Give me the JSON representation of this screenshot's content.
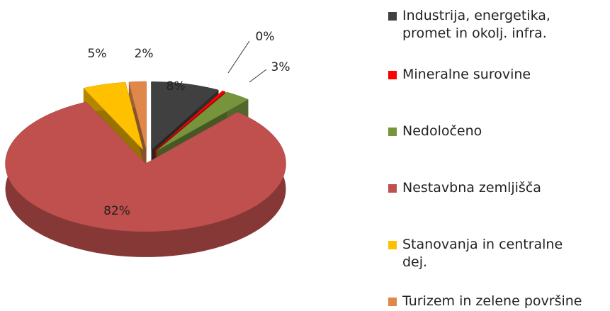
{
  "chart_data": {
    "type": "pie",
    "categories": [
      "Industrija, energetika, promet in okolj. infra.",
      "Mineralne surovine",
      "Nedoločeno",
      "Nestavbna zemljišča",
      "Stanovanja in centralne dej.",
      "Turizem in zelene površine"
    ],
    "values": [
      8,
      0.4,
      3,
      82,
      5,
      2
    ],
    "value_labels": [
      "8%",
      "0%",
      "3%",
      "82%",
      "5%",
      "2%"
    ],
    "colors": [
      "#404040",
      "#ff0000",
      "#77933c",
      "#c0504d",
      "#ffc000",
      "#e0884a"
    ],
    "legend": "right"
  }
}
